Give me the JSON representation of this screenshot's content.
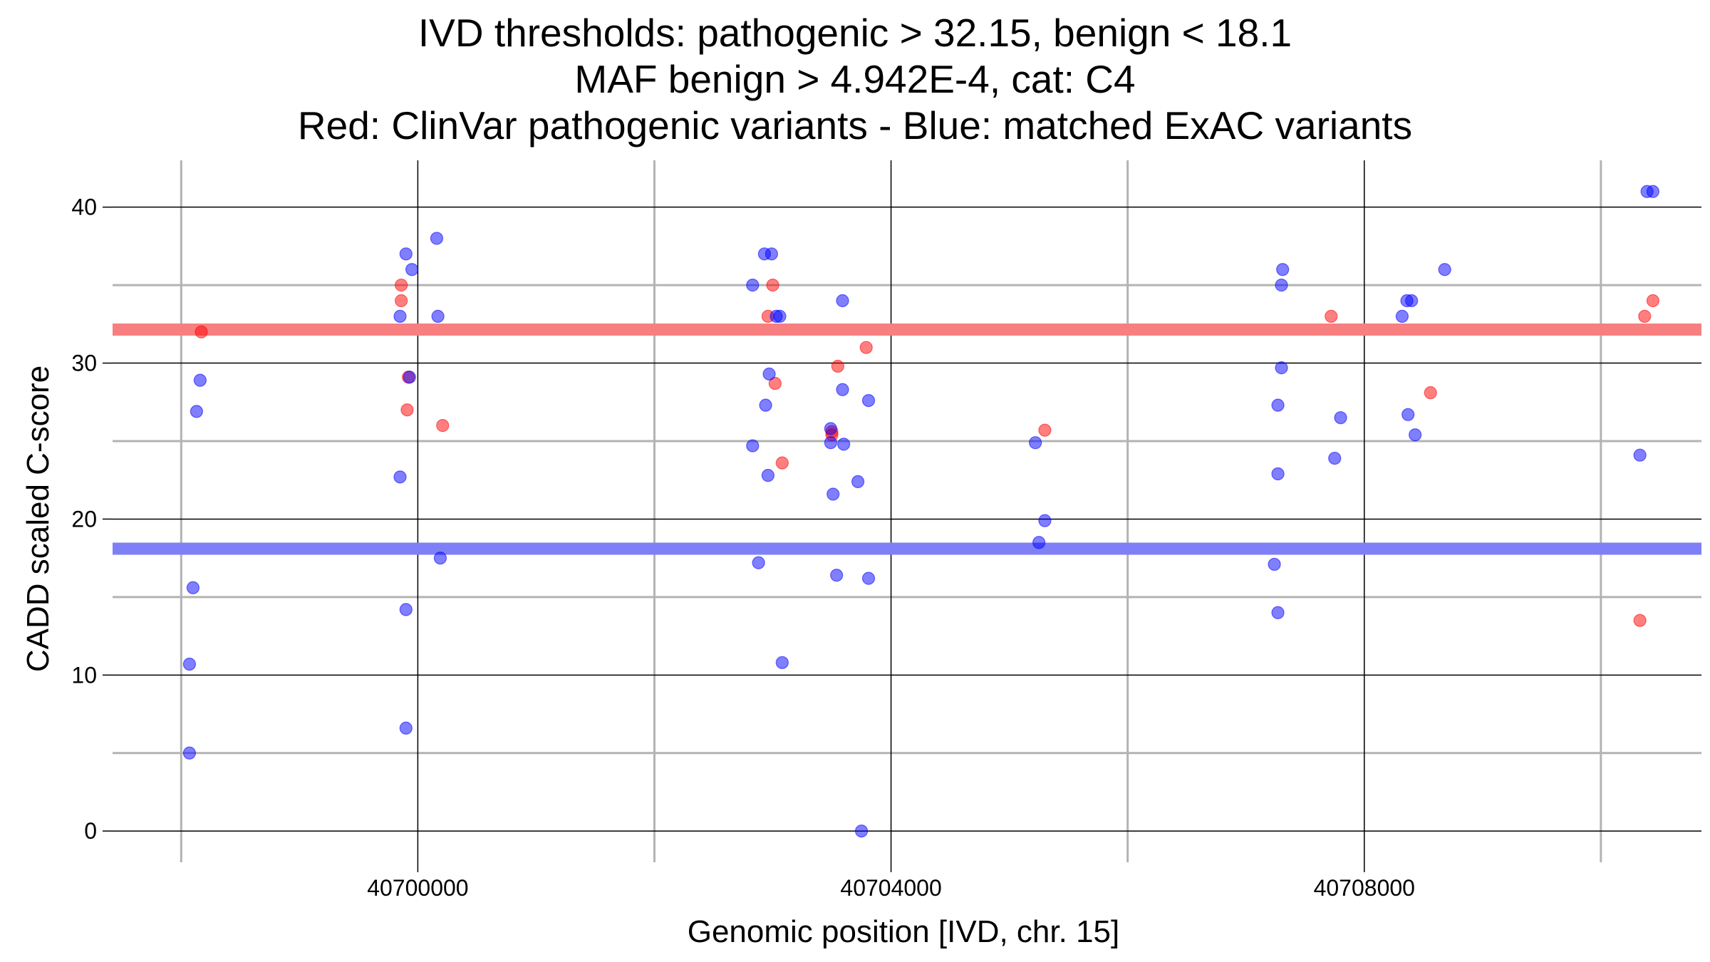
{
  "chart_data": {
    "type": "scatter",
    "title": [
      "IVD thresholds: pathogenic > 32.15, benign < 18.1",
      "MAF benign > 4.942E-4, cat: C4",
      "Red: ClinVar pathogenic variants - Blue: matched ExAC variants"
    ],
    "xlabel": "Genomic position [IVD, chr. 15]",
    "ylabel": "CADD scaled C-score",
    "xlim": [
      40697420,
      40710850
    ],
    "ylim": [
      -2,
      43
    ],
    "x_major_ticks": [
      40700000,
      40704000,
      40708000
    ],
    "x_tick_labels": [
      "40700000",
      "40704000",
      "40708000"
    ],
    "x_minor_ticks": [
      40698000,
      40702000,
      40706000,
      40710000
    ],
    "y_major_ticks": [
      0,
      10,
      20,
      30,
      40
    ],
    "y_tick_labels": [
      "0",
      "10",
      "20",
      "30",
      "40"
    ],
    "y_minor_ticks": [
      5,
      15,
      25,
      35
    ],
    "thresholds": {
      "pathogenic": {
        "value": 32.15,
        "color": "#f77f7f"
      },
      "benign": {
        "value": 18.1,
        "color": "#7f7ff7"
      }
    },
    "series": [
      {
        "name": "ClinVar pathogenic variants",
        "color": "#ff0000",
        "points": [
          [
            40698170,
            32.0
          ],
          [
            40699860,
            35.0
          ],
          [
            40699860,
            34.0
          ],
          [
            40699910,
            27.0
          ],
          [
            40699920,
            29.1
          ],
          [
            40700210,
            26.0
          ],
          [
            40703000,
            35.0
          ],
          [
            40702960,
            33.0
          ],
          [
            40703020,
            28.7
          ],
          [
            40703080,
            23.6
          ],
          [
            40703550,
            29.8
          ],
          [
            40703500,
            25.6
          ],
          [
            40703500,
            25.4
          ],
          [
            40703790,
            31.0
          ],
          [
            40705300,
            25.7
          ],
          [
            40707720,
            33.0
          ],
          [
            40708560,
            28.1
          ],
          [
            40710330,
            13.5
          ],
          [
            40710370,
            33.0
          ],
          [
            40710440,
            34.0
          ]
        ]
      },
      {
        "name": "matched ExAC variants",
        "color": "#0000ff",
        "points": [
          [
            40698070,
            10.7
          ],
          [
            40698070,
            5.0
          ],
          [
            40698100,
            15.6
          ],
          [
            40698130,
            26.9
          ],
          [
            40698160,
            28.9
          ],
          [
            40699850,
            33.0
          ],
          [
            40699850,
            22.7
          ],
          [
            40699900,
            37.0
          ],
          [
            40699900,
            14.2
          ],
          [
            40699900,
            6.6
          ],
          [
            40699930,
            29.1
          ],
          [
            40699950,
            36.0
          ],
          [
            40700160,
            38.0
          ],
          [
            40700170,
            33.0
          ],
          [
            40700190,
            17.5
          ],
          [
            40702830,
            35.0
          ],
          [
            40702830,
            24.7
          ],
          [
            40702880,
            17.2
          ],
          [
            40702930,
            37.0
          ],
          [
            40702940,
            27.3
          ],
          [
            40702960,
            22.8
          ],
          [
            40702970,
            29.3
          ],
          [
            40702990,
            37.0
          ],
          [
            40703030,
            33.0
          ],
          [
            40703060,
            33.0
          ],
          [
            40703080,
            10.8
          ],
          [
            40703490,
            25.8
          ],
          [
            40703490,
            24.9
          ],
          [
            40703510,
            21.6
          ],
          [
            40703540,
            16.4
          ],
          [
            40703590,
            34.0
          ],
          [
            40703590,
            28.3
          ],
          [
            40703600,
            24.8
          ],
          [
            40703720,
            22.4
          ],
          [
            40703750,
            0.0
          ],
          [
            40703810,
            27.6
          ],
          [
            40703810,
            16.2
          ],
          [
            40705220,
            24.9
          ],
          [
            40705250,
            18.5
          ],
          [
            40705300,
            19.9
          ],
          [
            40707240,
            17.1
          ],
          [
            40707270,
            22.9
          ],
          [
            40707270,
            27.3
          ],
          [
            40707270,
            14.0
          ],
          [
            40707300,
            29.7
          ],
          [
            40707300,
            35.0
          ],
          [
            40707310,
            36.0
          ],
          [
            40707750,
            23.9
          ],
          [
            40707800,
            26.5
          ],
          [
            40708320,
            33.0
          ],
          [
            40708360,
            34.0
          ],
          [
            40708370,
            26.7
          ],
          [
            40708400,
            34.0
          ],
          [
            40708430,
            25.4
          ],
          [
            40708680,
            36.0
          ],
          [
            40710330,
            24.1
          ],
          [
            40710390,
            41.0
          ],
          [
            40710440,
            41.0
          ]
        ]
      }
    ]
  }
}
